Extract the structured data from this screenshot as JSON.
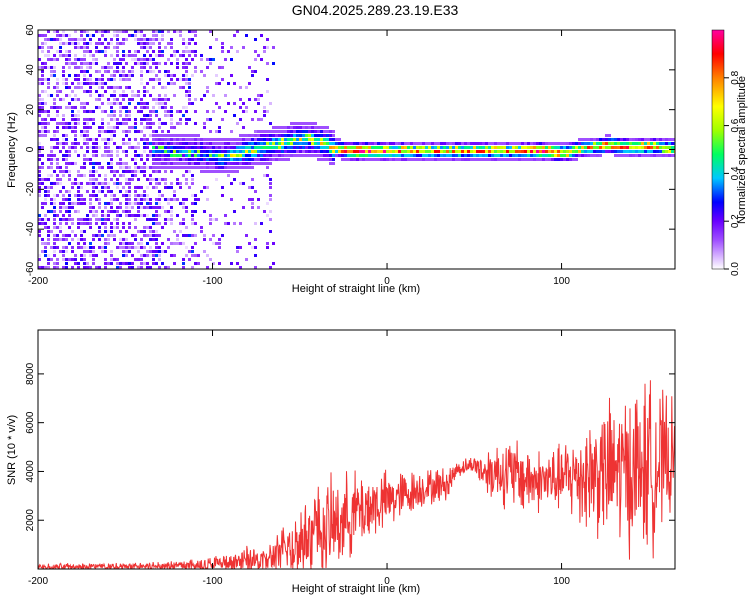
{
  "title": "GN04.2025.289.23.19.E33",
  "chart_data": [
    {
      "type": "heatmap",
      "name": "spectrogram",
      "title": "GN04.2025.289.23.19.E33",
      "xlabel": "Height of straight line (km)",
      "ylabel": "Frequency (Hz)",
      "xlim": [
        -200,
        165
      ],
      "ylim": [
        -60,
        60
      ],
      "xticks": [
        -200,
        -100,
        0,
        100
      ],
      "yticks": [
        -60,
        -40,
        -20,
        0,
        20,
        40,
        60
      ],
      "colorbar": {
        "label": "Normalized spectral amplitude",
        "range": [
          0.0,
          1.0
        ],
        "ticks": [
          0.0,
          0.2,
          0.4,
          0.6,
          0.8
        ],
        "tick_labels": [
          "0.0",
          "0.2",
          "0.4",
          "0.6",
          "0.8"
        ],
        "colors": [
          "#ffffff",
          "#d9b8ff",
          "#a050ff",
          "#6a00ff",
          "#0000ff",
          "#00c8ff",
          "#00ff60",
          "#a0ff00",
          "#ffff00",
          "#ff8000",
          "#ff0000",
          "#ff00a0"
        ]
      },
      "ridge": [
        {
          "x": -130,
          "f": 0,
          "amp": 0.3
        },
        {
          "x": -110,
          "f": -1,
          "amp": 0.35
        },
        {
          "x": -95,
          "f": -3,
          "amp": 0.4
        },
        {
          "x": -80,
          "f": 0,
          "amp": 0.45
        },
        {
          "x": -65,
          "f": 3,
          "amp": 0.45
        },
        {
          "x": -55,
          "f": 5,
          "amp": 0.45
        },
        {
          "x": -45,
          "f": 6,
          "amp": 0.45
        },
        {
          "x": -38,
          "f": 4,
          "amp": 0.5
        },
        {
          "x": -30,
          "f": 1,
          "amp": 0.55
        },
        {
          "x": -20,
          "f": 0,
          "amp": 0.9
        },
        {
          "x": 0,
          "f": 0,
          "amp": 0.7
        },
        {
          "x": 20,
          "f": 0,
          "amp": 0.6
        },
        {
          "x": 50,
          "f": 0,
          "amp": 0.65
        },
        {
          "x": 75,
          "f": 0,
          "amp": 0.6
        },
        {
          "x": 90,
          "f": 0,
          "amp": 0.85
        },
        {
          "x": 100,
          "f": -1,
          "amp": 0.7
        },
        {
          "x": 110,
          "f": 1,
          "amp": 0.6
        },
        {
          "x": 125,
          "f": 3,
          "amp": 0.65
        },
        {
          "x": 140,
          "f": 2,
          "amp": 0.7
        },
        {
          "x": 155,
          "f": 2,
          "amp": 0.6
        },
        {
          "x": 165,
          "f": 1,
          "amp": 0.55
        }
      ],
      "noise_region_km": [
        -200,
        -65
      ]
    },
    {
      "type": "line",
      "name": "snr",
      "title": "",
      "xlabel": "Height of straight line (km)",
      "ylabel": "SNR (10 * v/v)",
      "xlim": [
        -200,
        165
      ],
      "ylim": [
        0,
        9800
      ],
      "xticks": [
        -200,
        -100,
        0,
        100
      ],
      "yticks": [
        2000,
        4000,
        6000,
        8000
      ],
      "series": [
        {
          "name": "SNR",
          "color": "#ee3333",
          "envelope": [
            {
              "x": -200,
              "base": 80,
              "amp": 150
            },
            {
              "x": -150,
              "base": 100,
              "amp": 200
            },
            {
              "x": -110,
              "base": 150,
              "amp": 300
            },
            {
              "x": -90,
              "base": 250,
              "amp": 500
            },
            {
              "x": -80,
              "base": 350,
              "amp": 700
            },
            {
              "x": -70,
              "base": 300,
              "amp": 600
            },
            {
              "x": -60,
              "base": 700,
              "amp": 1200
            },
            {
              "x": -50,
              "base": 1100,
              "amp": 2000
            },
            {
              "x": -40,
              "base": 1500,
              "amp": 2400
            },
            {
              "x": -30,
              "base": 1800,
              "amp": 2200
            },
            {
              "x": -20,
              "base": 2300,
              "amp": 2000
            },
            {
              "x": 0,
              "base": 2800,
              "amp": 1400
            },
            {
              "x": 20,
              "base": 3300,
              "amp": 900
            },
            {
              "x": 35,
              "base": 3500,
              "amp": 800
            },
            {
              "x": 40,
              "base": 4100,
              "amp": 400
            },
            {
              "x": 50,
              "base": 4300,
              "amp": 400
            },
            {
              "x": 55,
              "base": 4000,
              "amp": 1000
            },
            {
              "x": 65,
              "base": 4000,
              "amp": 1600
            },
            {
              "x": 75,
              "base": 3800,
              "amp": 1800
            },
            {
              "x": 85,
              "base": 3600,
              "amp": 1500
            },
            {
              "x": 100,
              "base": 3700,
              "amp": 1600
            },
            {
              "x": 115,
              "base": 3900,
              "amp": 2800
            },
            {
              "x": 130,
              "base": 4000,
              "amp": 3500
            },
            {
              "x": 150,
              "base": 4200,
              "amp": 4200
            },
            {
              "x": 165,
              "base": 4500,
              "amp": 2500
            }
          ]
        }
      ]
    }
  ]
}
